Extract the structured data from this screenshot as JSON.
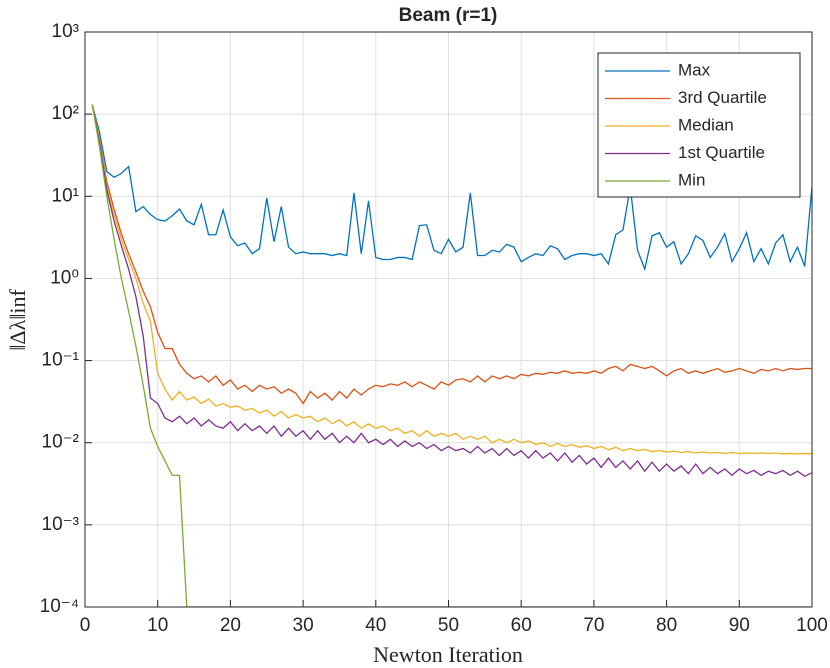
{
  "chart_data": {
    "type": "line",
    "title": "Beam (r=1)",
    "x_label": "Newton Iteration",
    "y_label": "‖Δλ‖inf",
    "x": [
      1,
      2,
      3,
      4,
      5,
      6,
      7,
      8,
      9,
      10,
      11,
      12,
      13,
      14,
      15,
      16,
      17,
      18,
      19,
      20,
      21,
      22,
      23,
      24,
      25,
      26,
      27,
      28,
      29,
      30,
      31,
      32,
      33,
      34,
      35,
      36,
      37,
      38,
      39,
      40,
      41,
      42,
      43,
      44,
      45,
      46,
      47,
      48,
      49,
      50,
      51,
      52,
      53,
      54,
      55,
      56,
      57,
      58,
      59,
      60,
      61,
      62,
      63,
      64,
      65,
      66,
      67,
      68,
      69,
      70,
      71,
      72,
      73,
      74,
      75,
      76,
      77,
      78,
      79,
      80,
      81,
      82,
      83,
      84,
      85,
      86,
      87,
      88,
      89,
      90,
      91,
      92,
      93,
      94,
      95,
      96,
      97,
      98,
      99,
      100
    ],
    "series": [
      {
        "name": "Max",
        "color": "#0072bd",
        "values": [
          130,
          60,
          20,
          17,
          19,
          23,
          6.5,
          7.5,
          6,
          5.2,
          5,
          5.8,
          7,
          5,
          4.5,
          8,
          3.4,
          3.4,
          6.8,
          3.2,
          2.5,
          2.7,
          2,
          2.3,
          9.5,
          2.8,
          7.5,
          2.4,
          2,
          2.1,
          2,
          2,
          2,
          1.9,
          2,
          1.9,
          11,
          2,
          8.8,
          1.8,
          1.7,
          1.7,
          1.8,
          1.8,
          1.7,
          4.4,
          4.5,
          2.2,
          2,
          3,
          2.1,
          2.4,
          11,
          1.9,
          1.9,
          2.2,
          2.1,
          2.6,
          2.4,
          1.6,
          1.8,
          2,
          1.9,
          2.5,
          2.3,
          1.7,
          1.9,
          2,
          2,
          1.9,
          2,
          1.5,
          3.4,
          3.9,
          13,
          2.2,
          1.3,
          3.3,
          3.6,
          2.4,
          2.8,
          1.5,
          2,
          3.3,
          2.9,
          1.8,
          2.4,
          3.5,
          1.6,
          2.3,
          3.6,
          1.6,
          2.3,
          1.5,
          2.7,
          3.4,
          1.6,
          2.4,
          1.4,
          13
        ]
      },
      {
        "name": "3rd Quartile",
        "color": "#d95319",
        "values": [
          130,
          50,
          15,
          7,
          3.5,
          2,
          1.2,
          0.7,
          0.45,
          0.22,
          0.14,
          0.14,
          0.09,
          0.07,
          0.06,
          0.065,
          0.055,
          0.065,
          0.05,
          0.058,
          0.045,
          0.05,
          0.042,
          0.05,
          0.045,
          0.048,
          0.04,
          0.045,
          0.04,
          0.03,
          0.042,
          0.035,
          0.04,
          0.033,
          0.042,
          0.035,
          0.045,
          0.038,
          0.045,
          0.05,
          0.048,
          0.052,
          0.05,
          0.055,
          0.048,
          0.055,
          0.05,
          0.045,
          0.055,
          0.05,
          0.058,
          0.06,
          0.055,
          0.065,
          0.055,
          0.065,
          0.06,
          0.065,
          0.06,
          0.068,
          0.065,
          0.07,
          0.068,
          0.072,
          0.07,
          0.075,
          0.07,
          0.072,
          0.07,
          0.075,
          0.07,
          0.08,
          0.085,
          0.075,
          0.09,
          0.085,
          0.08,
          0.085,
          0.075,
          0.065,
          0.075,
          0.08,
          0.07,
          0.075,
          0.07,
          0.075,
          0.08,
          0.072,
          0.075,
          0.08,
          0.075,
          0.07,
          0.078,
          0.075,
          0.08,
          0.075,
          0.08,
          0.078,
          0.08,
          0.08
        ]
      },
      {
        "name": "Median",
        "color": "#edb120",
        "values": [
          130,
          50,
          13,
          6,
          3,
          1.7,
          1,
          0.5,
          0.3,
          0.07,
          0.045,
          0.033,
          0.042,
          0.033,
          0.036,
          0.03,
          0.034,
          0.028,
          0.03,
          0.027,
          0.028,
          0.025,
          0.026,
          0.023,
          0.025,
          0.021,
          0.024,
          0.02,
          0.022,
          0.02,
          0.021,
          0.018,
          0.02,
          0.017,
          0.019,
          0.016,
          0.018,
          0.015,
          0.017,
          0.015,
          0.016,
          0.014,
          0.015,
          0.013,
          0.014,
          0.012,
          0.014,
          0.012,
          0.013,
          0.012,
          0.013,
          0.011,
          0.012,
          0.011,
          0.012,
          0.01,
          0.011,
          0.01,
          0.011,
          0.01,
          0.0105,
          0.0095,
          0.01,
          0.009,
          0.0098,
          0.009,
          0.0095,
          0.0088,
          0.0092,
          0.0085,
          0.009,
          0.0082,
          0.0088,
          0.008,
          0.0085,
          0.008,
          0.0083,
          0.0078,
          0.008,
          0.0077,
          0.0079,
          0.0076,
          0.0078,
          0.0075,
          0.0077,
          0.0075,
          0.0076,
          0.0074,
          0.0076,
          0.0074,
          0.0075,
          0.0074,
          0.0075,
          0.0074,
          0.0075,
          0.0073,
          0.0074,
          0.0073,
          0.0074,
          0.0073
        ]
      },
      {
        "name": "1st Quartile",
        "color": "#7e2f8e",
        "values": [
          130,
          45,
          12,
          5,
          2.5,
          1.3,
          0.6,
          0.2,
          0.035,
          0.03,
          0.02,
          0.018,
          0.021,
          0.017,
          0.02,
          0.016,
          0.019,
          0.016,
          0.015,
          0.018,
          0.014,
          0.017,
          0.014,
          0.016,
          0.013,
          0.016,
          0.012,
          0.015,
          0.012,
          0.014,
          0.011,
          0.014,
          0.011,
          0.013,
          0.01,
          0.012,
          0.01,
          0.013,
          0.01,
          0.011,
          0.0095,
          0.011,
          0.009,
          0.0105,
          0.009,
          0.01,
          0.0085,
          0.0095,
          0.008,
          0.009,
          0.008,
          0.0085,
          0.0075,
          0.009,
          0.0075,
          0.0085,
          0.007,
          0.0085,
          0.007,
          0.008,
          0.0065,
          0.008,
          0.0065,
          0.0075,
          0.006,
          0.0075,
          0.0058,
          0.007,
          0.0055,
          0.0065,
          0.005,
          0.0065,
          0.005,
          0.006,
          0.0048,
          0.006,
          0.0045,
          0.0058,
          0.0045,
          0.0055,
          0.0045,
          0.0052,
          0.0042,
          0.0055,
          0.0042,
          0.005,
          0.0042,
          0.0048,
          0.004,
          0.0048,
          0.0042,
          0.0046,
          0.004,
          0.0045,
          0.0042,
          0.0046,
          0.004,
          0.0045,
          0.0039,
          0.0043
        ]
      },
      {
        "name": "Min",
        "color": "#77ac30",
        "values": [
          130,
          40,
          10,
          3,
          1,
          0.4,
          0.15,
          0.05,
          0.015,
          0.009,
          0.006,
          0.004,
          0.004,
          0.0001,
          0.0001,
          0.0001,
          0.0001,
          0.0001,
          0.0001,
          0.0001,
          0.0001,
          0.0001,
          0.0001,
          0.0001,
          0.0001,
          0.0001,
          0.0001,
          0.0001,
          0.0001,
          0.0001,
          0.0001,
          0.0001,
          0.0001,
          0.0001,
          0.0001,
          0.0001,
          0.0001,
          0.0001,
          0.0001,
          0.0001,
          0.0001,
          0.0001,
          0.0001,
          0.0001,
          0.0001,
          0.0001,
          0.0001,
          0.0001,
          0.0001,
          0.0001,
          0.0001,
          0.0001,
          0.0001,
          0.0001,
          0.0001,
          0.0001,
          0.0001,
          0.0001,
          0.0001,
          0.0001,
          0.0001,
          0.0001,
          0.0001,
          0.0001,
          0.0001,
          0.0001,
          0.0001,
          0.0001,
          0.0001,
          0.0001,
          0.0001,
          0.0001,
          0.0001,
          0.0001,
          0.0001,
          0.0001,
          0.0001,
          0.0001,
          0.0001,
          0.0001,
          0.0001,
          0.0001,
          0.0001,
          0.0001,
          0.0001,
          0.0001,
          0.0001,
          0.0001,
          0.0001,
          0.0001,
          0.0001,
          0.0001,
          0.0001,
          0.0001,
          0.0001,
          0.0001,
          0.0001,
          0.0001,
          0.0001,
          0.0001
        ]
      }
    ],
    "xlim": [
      0,
      100
    ],
    "xticks": [
      0,
      10,
      20,
      30,
      40,
      50,
      60,
      70,
      80,
      90,
      100
    ],
    "ylim": [
      0.0001,
      1000
    ],
    "log_y": true,
    "yticks": [
      {
        "value": 0.0001,
        "label": "10⁻⁴"
      },
      {
        "value": 0.001,
        "label": "10⁻³"
      },
      {
        "value": 0.01,
        "label": "10⁻²"
      },
      {
        "value": 0.1,
        "label": "10⁻¹"
      },
      {
        "value": 1,
        "label": "10⁰"
      },
      {
        "value": 10,
        "label": "10¹"
      },
      {
        "value": 100,
        "label": "10²"
      },
      {
        "value": 1000,
        "label": "10³"
      }
    ],
    "grid": true,
    "legend": "upper right"
  }
}
